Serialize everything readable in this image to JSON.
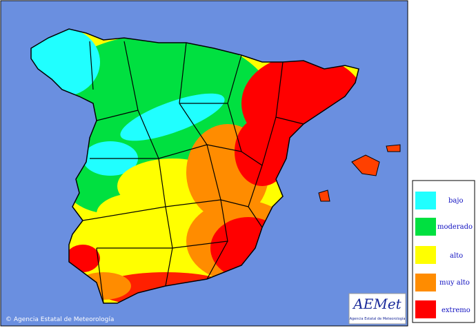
{
  "map": {
    "copyright": "© Agencia Estatal de Meteorología"
  },
  "legend": {
    "items": [
      {
        "label": "bajo"
      },
      {
        "label": "moderado"
      },
      {
        "label": "alto"
      },
      {
        "label": "muy alto"
      },
      {
        "label": "extremo"
      }
    ]
  },
  "logo": {
    "name": "AEMet",
    "subtitle": "Agencia Estatal de Meteorología"
  }
}
